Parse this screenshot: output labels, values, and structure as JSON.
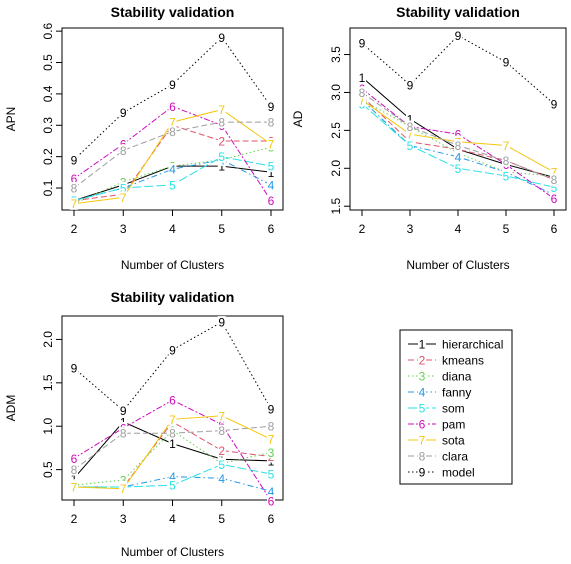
{
  "chart_data": [
    {
      "type": "line",
      "title": "Stability validation",
      "xlabel": "Number of Clusters",
      "ylabel": "APN",
      "x": [
        2,
        3,
        4,
        5,
        6
      ],
      "xticks": [
        "2",
        "3",
        "4",
        "5",
        "6"
      ],
      "ylim": [
        0.03,
        0.61
      ],
      "yticks": [
        0.1,
        0.2,
        0.3,
        0.4,
        0.5,
        0.6
      ],
      "yticklabels": [
        "0.1",
        "0.2",
        "0.3",
        "0.4",
        "0.5",
        "0.6"
      ],
      "series": [
        {
          "name": "hierarchical",
          "values": [
            0.06,
            0.11,
            0.17,
            0.17,
            0.15
          ]
        },
        {
          "name": "kmeans",
          "values": [
            0.06,
            0.08,
            0.3,
            0.25,
            0.25
          ]
        },
        {
          "name": "diana",
          "values": [
            0.05,
            0.12,
            0.17,
            0.19,
            0.23
          ]
        },
        {
          "name": "fanny",
          "values": [
            0.06,
            0.1,
            0.16,
            0.19,
            0.11
          ]
        },
        {
          "name": "som",
          "values": [
            0.06,
            0.1,
            0.11,
            0.2,
            0.17
          ]
        },
        {
          "name": "pam",
          "values": [
            0.13,
            0.24,
            0.36,
            0.3,
            0.06
          ]
        },
        {
          "name": "sota",
          "values": [
            0.05,
            0.07,
            0.31,
            0.35,
            0.24
          ]
        },
        {
          "name": "clara",
          "values": [
            0.1,
            0.22,
            0.28,
            0.31,
            0.31
          ]
        },
        {
          "name": "model",
          "values": [
            0.19,
            0.34,
            0.43,
            0.58,
            0.36
          ]
        }
      ]
    },
    {
      "type": "line",
      "title": "Stability validation",
      "xlabel": "Number of Clusters",
      "ylabel": "AD",
      "x": [
        2,
        3,
        4,
        5,
        6
      ],
      "xticks": [
        "2",
        "3",
        "4",
        "5",
        "6"
      ],
      "ylim": [
        1.45,
        3.85
      ],
      "yticks": [
        1.5,
        2.0,
        2.5,
        3.0,
        3.5
      ],
      "yticklabels": [
        "1.5",
        "2.0",
        "2.5",
        "3.0",
        "3.5"
      ],
      "series": [
        {
          "name": "hierarchical",
          "values": [
            3.2,
            2.65,
            2.25,
            2.05,
            1.88
          ]
        },
        {
          "name": "kmeans",
          "values": [
            2.95,
            2.35,
            2.25,
            2.1,
            1.85
          ]
        },
        {
          "name": "diana",
          "values": [
            2.9,
            2.55,
            2.2,
            1.95,
            1.9
          ]
        },
        {
          "name": "fanny",
          "values": [
            2.9,
            2.3,
            2.15,
            1.95,
            1.65
          ]
        },
        {
          "name": "som",
          "values": [
            2.85,
            2.3,
            2.0,
            1.9,
            1.75
          ]
        },
        {
          "name": "pam",
          "values": [
            3.05,
            2.55,
            2.45,
            2.05,
            1.6
          ]
        },
        {
          "name": "sota",
          "values": [
            2.9,
            2.45,
            2.35,
            2.3,
            1.95
          ]
        },
        {
          "name": "clara",
          "values": [
            3.0,
            2.55,
            2.3,
            2.1,
            1.85
          ]
        },
        {
          "name": "model",
          "values": [
            3.65,
            3.1,
            3.75,
            3.4,
            2.85
          ]
        }
      ]
    },
    {
      "type": "line",
      "title": "Stability validation",
      "xlabel": "Number of Clusters",
      "ylabel": "ADM",
      "x": [
        2,
        3,
        4,
        5,
        6
      ],
      "xticks": [
        "2",
        "3",
        "4",
        "5",
        "6"
      ],
      "ylim": [
        0.15,
        2.27
      ],
      "yticks": [
        0.5,
        1.0,
        1.5,
        2.0
      ],
      "yticklabels": [
        "0.5",
        "1.0",
        "1.5",
        "2.0"
      ],
      "series": [
        {
          "name": "hierarchical",
          "values": [
            0.4,
            1.05,
            0.8,
            0.62,
            0.6
          ]
        },
        {
          "name": "kmeans",
          "values": [
            0.3,
            0.3,
            1.05,
            0.72,
            0.65
          ]
        },
        {
          "name": "diana",
          "values": [
            0.32,
            0.38,
            0.95,
            0.57,
            0.7
          ]
        },
        {
          "name": "fanny",
          "values": [
            0.3,
            0.3,
            0.42,
            0.4,
            0.25
          ]
        },
        {
          "name": "som",
          "values": [
            0.3,
            0.3,
            0.32,
            0.56,
            0.45
          ]
        },
        {
          "name": "pam",
          "values": [
            0.63,
            0.98,
            1.3,
            1.02,
            0.14
          ]
        },
        {
          "name": "sota",
          "values": [
            0.3,
            0.28,
            1.08,
            1.12,
            0.85
          ]
        },
        {
          "name": "clara",
          "values": [
            0.5,
            0.92,
            0.92,
            0.95,
            1.0
          ]
        },
        {
          "name": "model",
          "values": [
            1.67,
            1.18,
            1.88,
            2.2,
            1.2
          ]
        }
      ]
    }
  ],
  "series_style": [
    {
      "name": "hierarchical",
      "symbol": "1",
      "color": "#000000",
      "dash": ""
    },
    {
      "name": "kmeans",
      "symbol": "2",
      "color": "#DF536B",
      "dash": "6,3"
    },
    {
      "name": "diana",
      "symbol": "3",
      "color": "#61D04F",
      "dash": "1.5,2.5"
    },
    {
      "name": "fanny",
      "symbol": "4",
      "color": "#2297E6",
      "dash": "6,3,1.5,3"
    },
    {
      "name": "som",
      "symbol": "5",
      "color": "#28E2E5",
      "dash": "9,3"
    },
    {
      "name": "pam",
      "symbol": "6",
      "color": "#CD0BBC",
      "dash": "6,2,2,2"
    },
    {
      "name": "sota",
      "symbol": "7",
      "color": "#F5C710",
      "dash": ""
    },
    {
      "name": "clara",
      "symbol": "8",
      "color": "#9E9E9E",
      "dash": "6,3"
    },
    {
      "name": "model",
      "symbol": "9",
      "color": "#000000",
      "dash": "1.5,2.5"
    }
  ]
}
